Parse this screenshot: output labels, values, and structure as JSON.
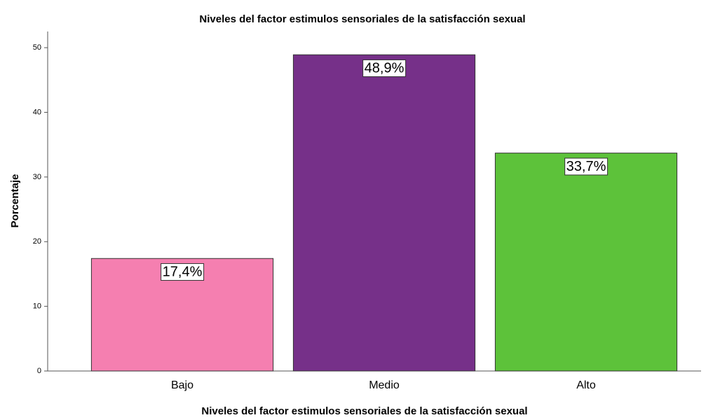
{
  "chart_data": {
    "type": "bar",
    "title": "Niveles del factor estimulos sensoriales de la satisfacción sexual",
    "x_label": "Niveles del factor estimulos sensoriales de la satisfacción sexual",
    "y_label": "Porcentaje",
    "categories": [
      "Bajo",
      "Medio",
      "Alto"
    ],
    "values": [
      17.4,
      48.9,
      33.7
    ],
    "value_labels": [
      "17,4%",
      "48,9%",
      "33,7%"
    ],
    "colors": [
      "#f57fb0",
      "#763089",
      "#5dc23a"
    ],
    "ylim": [
      0,
      52.5
    ],
    "yticks": [
      0,
      10,
      20,
      30,
      40,
      50
    ],
    "grid": false
  }
}
